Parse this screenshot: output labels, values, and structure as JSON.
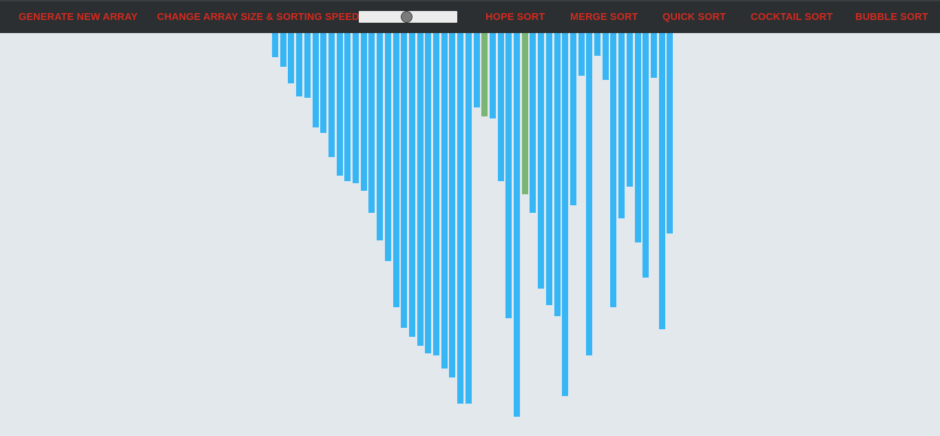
{
  "nav": {
    "generate": "GENERATE NEW ARRAY",
    "change_size": "CHANGE ARRAY SIZE & SORTING SPEED",
    "hope_sort": "HOPE SORT",
    "merge_sort": "MERGE SORT",
    "quick_sort": "QUICK SORT",
    "cocktail_sort": "COCKTAIL SORT",
    "bubble_sort": "BUBBLE SORT"
  },
  "slider": {
    "value_fraction": 0.48
  },
  "colors": {
    "nav_bg": "#2b2f31",
    "nav_text": "#d32a1f",
    "canvas_bg": "#e3e8ec",
    "bar_default": "#37b6f6",
    "bar_compare": "#7bb574"
  },
  "array": {
    "values": [
      35,
      49,
      73,
      92,
      94,
      137,
      145,
      180,
      207,
      215,
      218,
      229,
      261,
      301,
      331,
      398,
      428,
      441,
      454,
      465,
      468,
      487,
      500,
      538,
      538,
      108,
      121,
      124,
      215,
      414,
      557,
      234,
      261,
      371,
      395,
      411,
      527,
      250,
      62,
      468,
      33,
      68,
      398,
      269,
      223,
      304,
      355,
      65,
      430,
      291
    ],
    "highlighted_indices": [
      26,
      31
    ]
  }
}
